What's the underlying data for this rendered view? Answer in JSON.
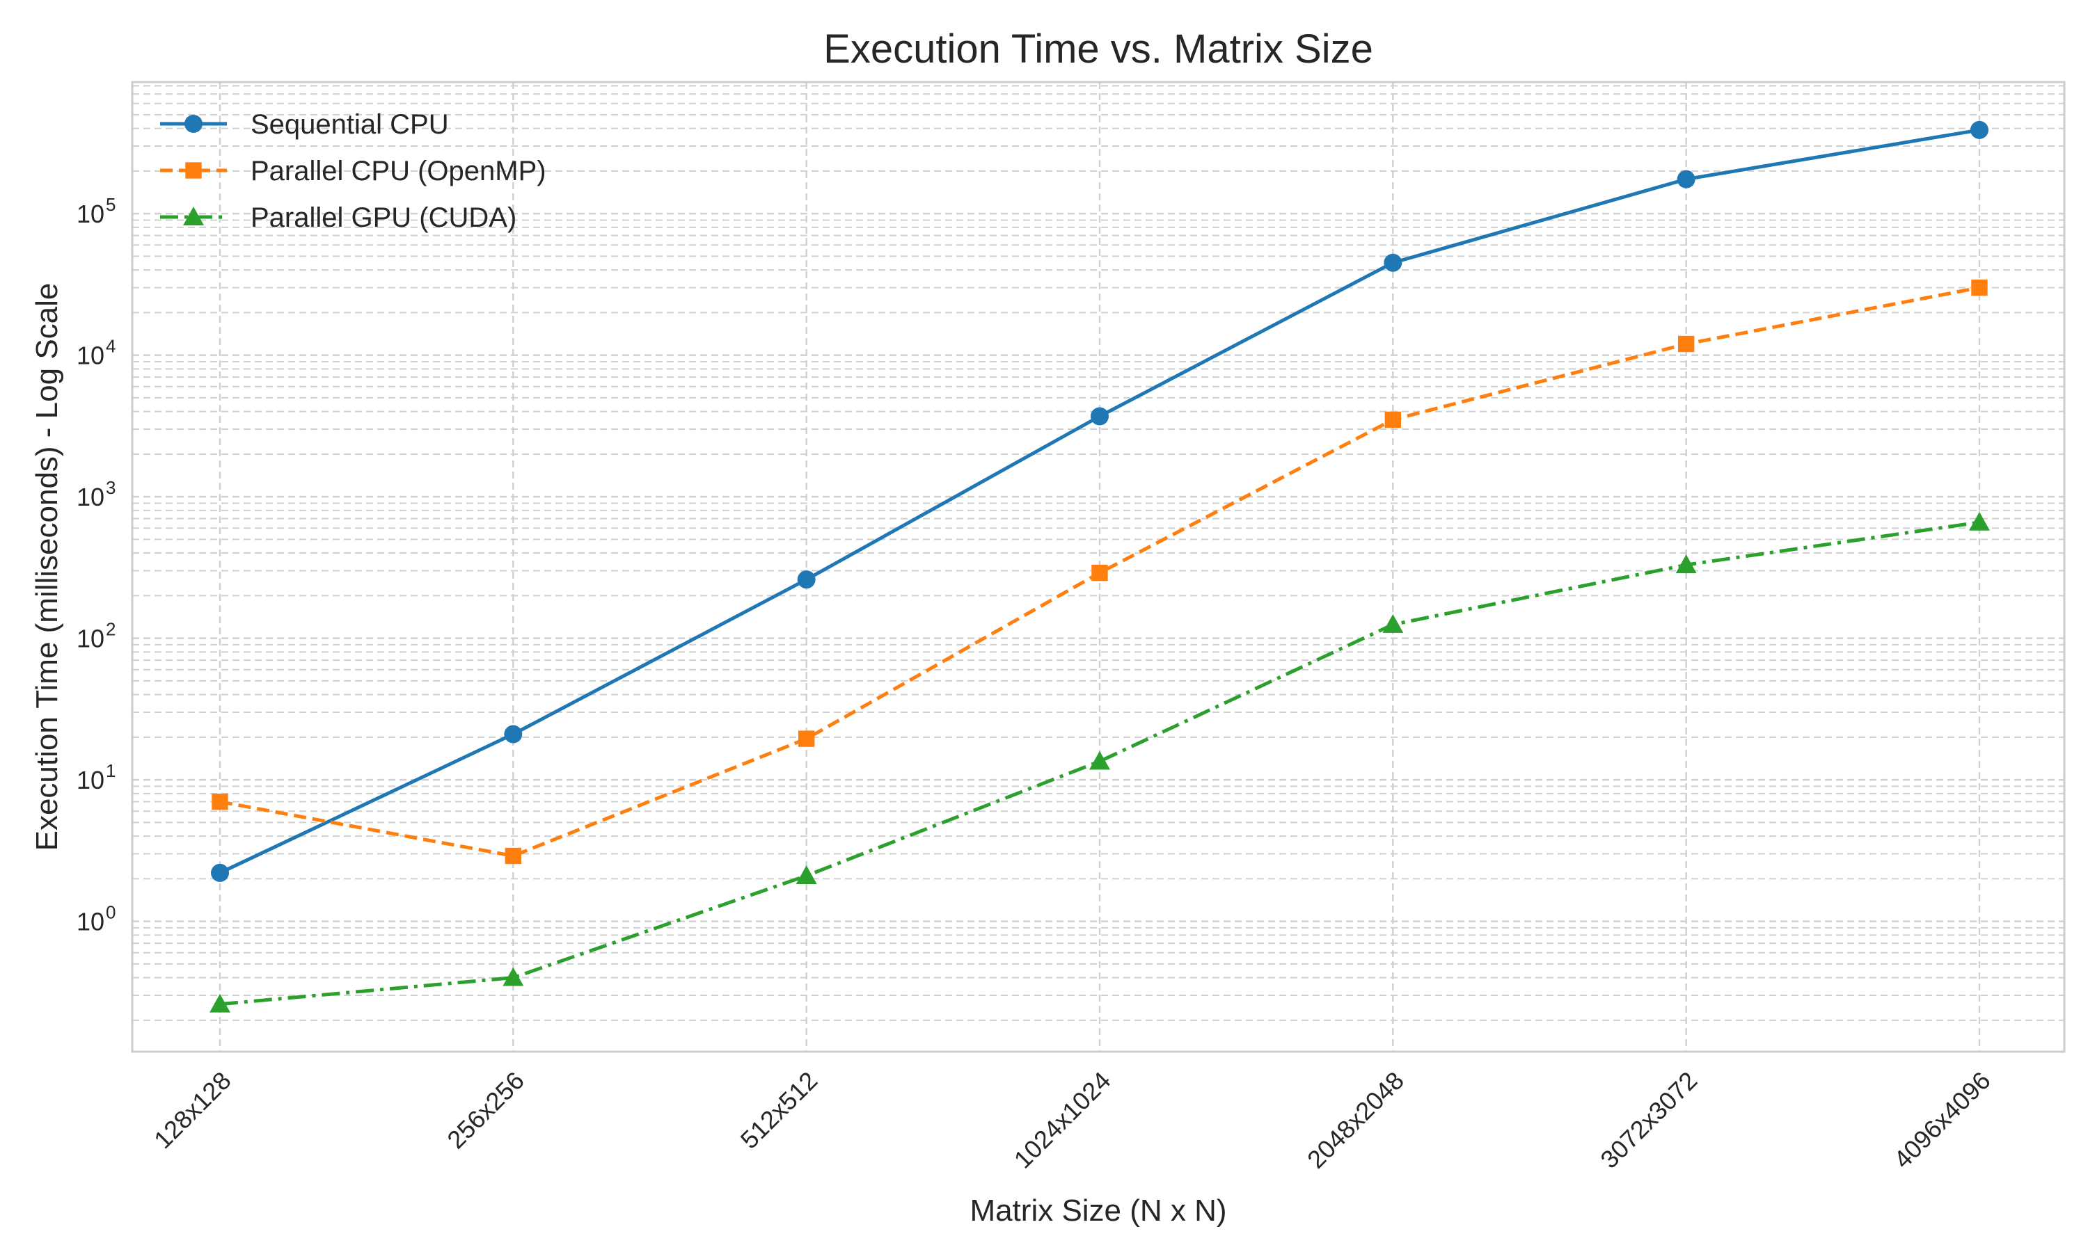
{
  "chart_data": {
    "type": "line",
    "title": "Execution Time vs. Matrix Size",
    "xlabel": "Matrix Size (N x N)",
    "ylabel": "Execution Time (milliseconds) - Log Scale",
    "yscale": "log",
    "ylim": [
      0.12,
      850000
    ],
    "categories": [
      "128x128",
      "256x256",
      "512x512",
      "1024x1024",
      "2048x2048",
      "3072x3072",
      "4096x4096"
    ],
    "y_ticks": [
      {
        "value": 1,
        "base": "10",
        "exp": "0"
      },
      {
        "value": 10,
        "base": "10",
        "exp": "1"
      },
      {
        "value": 100,
        "base": "10",
        "exp": "2"
      },
      {
        "value": 1000,
        "base": "10",
        "exp": "3"
      },
      {
        "value": 10000,
        "base": "10",
        "exp": "4"
      },
      {
        "value": 100000,
        "base": "10",
        "exp": "5"
      }
    ],
    "grid": true,
    "legend_position": "top-left",
    "series": [
      {
        "name": "Sequential CPU",
        "color": "#1f77b4",
        "marker": "circle",
        "linestyle": "solid",
        "values": [
          2.2,
          21,
          260,
          3700,
          45000,
          175000,
          390000
        ]
      },
      {
        "name": "Parallel CPU (OpenMP)",
        "color": "#ff7f0e",
        "marker": "square",
        "linestyle": "dashed",
        "values": [
          7,
          2.9,
          19.5,
          290,
          3500,
          12000,
          30000
        ]
      },
      {
        "name": "Parallel GPU (CUDA)",
        "color": "#2ca02c",
        "marker": "triangle",
        "linestyle": "dashdot",
        "values": [
          0.26,
          0.4,
          2.1,
          13.5,
          125,
          330,
          660
        ]
      }
    ]
  }
}
